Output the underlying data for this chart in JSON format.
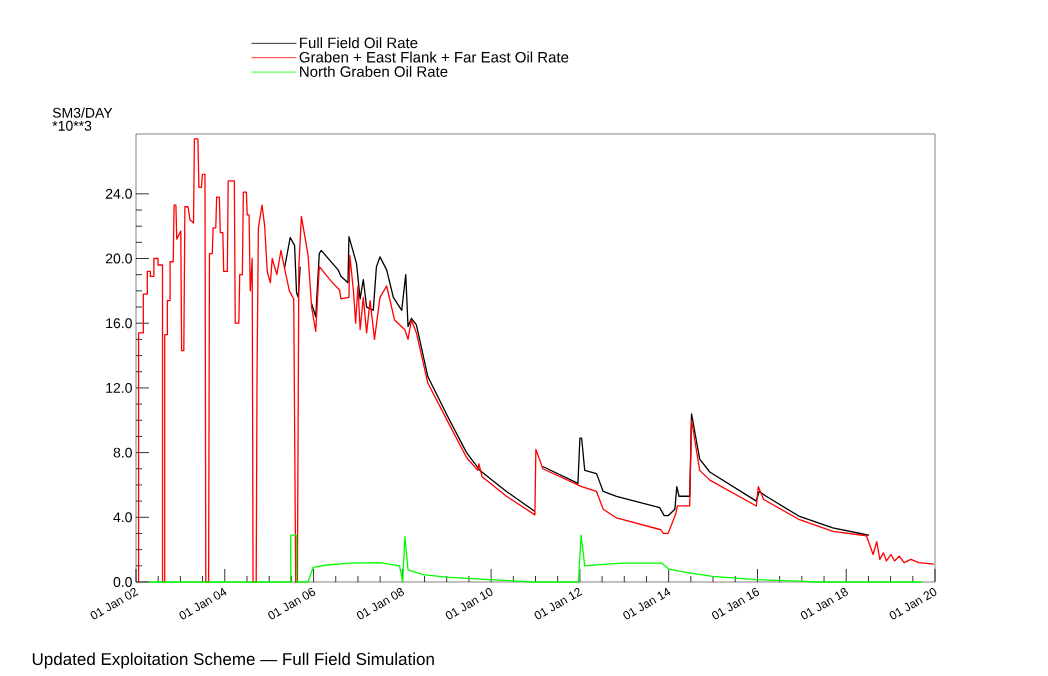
{
  "chart_data": {
    "type": "line",
    "ylabel": "SM3/DAY *10**3",
    "annotations": [
      "Updated Exploitation Scheme — Full Field Simulation"
    ],
    "xlim": [
      "2002-01-01",
      "2020-01-01"
    ],
    "xticks": [
      {
        "value": "2002-01-01",
        "label": "01 Jan 02"
      },
      {
        "value": "2004-01-01",
        "label": "01 Jan 04"
      },
      {
        "value": "2006-01-01",
        "label": "01 Jan 06"
      },
      {
        "value": "2008-01-01",
        "label": "01 Jan 08"
      },
      {
        "value": "2010-01-01",
        "label": "01 Jan 10"
      },
      {
        "value": "2012-01-01",
        "label": "01 Jan 12"
      },
      {
        "value": "2014-01-01",
        "label": "01 Jan 14"
      },
      {
        "value": "2016-01-01",
        "label": "01 Jan 16"
      },
      {
        "value": "2018-01-01",
        "label": "01 Jan 18"
      },
      {
        "value": "2020-01-01",
        "label": "01 Jan 20"
      }
    ],
    "ylim": [
      0,
      27.7
    ],
    "yticks": [
      {
        "value": 0,
        "label": "0.0"
      },
      {
        "value": 4,
        "label": "4.0"
      },
      {
        "value": 8,
        "label": "8.0"
      },
      {
        "value": 12,
        "label": "12.0"
      },
      {
        "value": 16,
        "label": "16.0"
      },
      {
        "value": 20,
        "label": "20.0"
      },
      {
        "value": 24,
        "label": "24.0"
      }
    ],
    "grid": false,
    "legend": "top",
    "marker": "none",
    "line_style": "solid",
    "series": [
      {
        "name": "Full Field Oil Rate",
        "color": "#000000",
        "x": [
          "2005-05-07",
          "2005-06-23",
          "2005-07-29",
          "2005-08-14",
          "2005-08-28",
          "2005-09-13",
          "2005-09-23",
          "2005-11-17",
          "2005-12-16",
          "2006-01-19",
          "2006-02-17",
          "2006-03-05",
          "2006-07-22",
          "2006-08-14",
          "2006-10-11",
          "2006-10-19",
          "2006-12-20",
          "2007-01-19",
          "2007-02-14",
          "2007-03-13",
          "2007-05-07",
          "2007-06-02",
          "2007-07-01",
          "2007-08-25",
          "2007-10-19",
          "2007-12-27",
          "2008-01-29",
          "2008-02-17",
          "2008-03-16",
          "2008-04-26",
          "2008-07-29",
          "2009-01-11",
          "2009-06-13",
          "2009-10-01",
          "2010-05-07",
          "2010-12-27",
          "2011-01-04",
          "2011-03-02",
          "2011-12-16",
          "2012-01-01",
          "2012-01-15",
          "2012-02-10",
          "2012-05-17",
          "2012-07-11",
          "2012-10-29",
          "2013-10-19",
          "2013-11-25",
          "2013-12-27",
          "2014-02-21",
          "2014-03-09",
          "2014-03-27",
          "2014-06-23",
          "2014-07-08",
          "2014-09-13",
          "2014-12-05",
          "2015-12-23",
          "2016-01-15",
          "2016-03-13",
          "2016-12-13",
          "2017-09-13",
          "2018-06-16",
          "2018-07-08"
        ],
        "values": [
          19.4,
          21.3,
          20.8,
          17.9,
          17.6,
          19.5,
          null,
          null,
          17.2,
          16.4,
          20.3,
          20.5,
          19.3,
          18.9,
          18.5,
          21.35,
          19.7,
          17.5,
          18.7,
          17.0,
          16.8,
          19.5,
          20.1,
          19.3,
          17.6,
          16.8,
          19.0,
          15.8,
          16.3,
          15.9,
          12.7,
          10.2,
          8.0,
          6.9,
          5.6,
          4.36,
          null,
          7.14,
          6.1,
          8.9,
          8.9,
          6.9,
          6.7,
          5.6,
          5.3,
          4.6,
          4.1,
          4.1,
          4.5,
          5.9,
          5.3,
          5.3,
          10.4,
          7.6,
          6.8,
          5.0,
          5.6,
          5.3,
          4.05,
          3.34,
          2.92,
          2.9
        ]
      },
      {
        "name": "Graben + East Flank + Far East Oil Rate",
        "color": "#ff0000",
        "x": [
          "2002-01-22",
          "2002-01-22",
          "2002-03-02",
          "2002-03-02",
          "2002-04-04",
          "2002-04-04",
          "2002-04-29",
          "2002-04-29",
          "2002-05-28",
          "2002-05-28",
          "2002-07-01",
          "2002-07-01",
          "2002-08-07",
          "2002-08-07",
          "2002-08-25",
          "2002-08-25",
          "2002-09-16",
          "2002-09-16",
          "2002-10-08",
          "2002-10-08",
          "2002-11-03",
          "2002-11-10",
          "2002-11-25",
          "2002-12-02",
          "2003-01-04",
          "2003-01-11",
          "2003-01-29",
          "2003-02-07",
          "2003-03-05",
          "2003-03-20",
          "2003-04-19",
          "2003-04-26",
          "2003-05-25",
          "2003-06-02",
          "2003-06-23",
          "2003-07-01",
          "2003-07-22",
          "2003-07-29",
          "2003-08-21",
          "2003-08-28",
          "2003-09-20",
          "2003-09-27",
          "2003-10-19",
          "2003-10-26",
          "2003-11-17",
          "2003-11-25",
          "2003-12-16",
          "2003-12-23",
          "2004-01-22",
          "2004-01-29",
          "2004-03-20",
          "2004-03-27",
          "2004-04-26",
          "2004-05-03",
          "2004-05-25",
          "2004-06-02",
          "2004-06-27",
          "2004-07-04",
          "2004-07-19",
          "2004-07-29",
          "2004-08-14",
          "2004-08-21",
          "2004-09-16",
          "2004-09-23",
          "2004-10-04",
          "2004-11-03",
          "2004-11-25",
          "2004-12-16",
          "2005-01-11",
          "2005-01-26",
          "2005-03-05",
          "2005-04-08",
          "2005-05-10",
          "2005-06-16",
          "2005-07-22",
          "2005-08-07",
          "2005-08-21",
          "2005-09-02",
          "2005-09-23",
          "2005-11-17",
          "2005-12-16",
          "2006-01-19",
          "2006-02-17",
          "2006-05-25",
          "2006-08-03",
          "2006-08-14",
          "2006-10-19",
          "2006-10-26",
          "2006-11-25",
          "2006-12-13",
          "2007-01-01",
          "2007-01-19",
          "2007-02-14",
          "2007-03-13",
          "2007-04-11",
          "2007-05-17",
          "2007-07-01",
          "2007-08-25",
          "2007-10-29",
          "2008-01-22",
          "2008-02-17",
          "2008-03-16",
          "2008-04-26",
          "2008-07-29",
          "2009-01-11",
          "2009-06-13",
          "2009-09-13",
          "2009-09-23",
          "2009-10-19",
          "2010-05-07",
          "2010-12-27",
          "2011-01-04",
          "2011-03-02",
          "2011-12-16",
          "2012-01-15",
          "2012-05-17",
          "2012-07-11",
          "2012-10-29",
          "2013-10-29",
          "2013-11-17",
          "2013-12-27",
          "2014-03-02",
          "2014-03-13",
          "2014-06-23",
          "2014-07-08",
          "2014-09-13",
          "2014-12-05",
          "2015-12-23",
          "2016-01-08",
          "2016-02-21",
          "2016-12-13",
          "2017-09-13",
          "2018-06-16",
          "2018-08-10",
          "2018-09-09",
          "2018-10-04",
          "2018-11-03",
          "2018-11-28",
          "2019-01-04",
          "2019-02-03",
          "2019-03-13",
          "2019-04-22",
          "2019-06-16",
          "2019-08-21",
          "2019-12-23"
        ],
        "values": [
          0,
          15.4,
          15.4,
          17.8,
          17.8,
          19.2,
          19.2,
          18.9,
          18.9,
          20.0,
          20.0,
          19.6,
          19.6,
          0,
          0,
          15.3,
          15.3,
          17.4,
          17.4,
          19.8,
          19.8,
          23.3,
          23.3,
          21.2,
          21.7,
          14.3,
          14.3,
          23.2,
          23.2,
          22.4,
          22.2,
          27.4,
          27.4,
          24.4,
          24.4,
          25.2,
          25.2,
          0,
          0,
          20.3,
          20.3,
          21.9,
          21.9,
          23.8,
          23.8,
          21.6,
          21.6,
          19.2,
          19.2,
          24.8,
          24.8,
          16.0,
          16.0,
          19.0,
          19.0,
          24.1,
          24.1,
          22.7,
          22.7,
          18.0,
          20.0,
          0,
          0,
          13.0,
          21.9,
          23.3,
          22.0,
          19.2,
          18.5,
          20.0,
          19.0,
          20.5,
          19.3,
          18.0,
          17.5,
          0,
          0,
          19.5,
          22.6,
          20.2,
          17.0,
          15.5,
          19.5,
          18.6,
          18.05,
          17.5,
          17.6,
          20.2,
          18.0,
          16.0,
          18.3,
          15.6,
          17.6,
          15.4,
          17.4,
          15.0,
          17.6,
          18.3,
          16.2,
          15.6,
          15.0,
          16.2,
          15.4,
          12.3,
          9.9,
          7.7,
          6.9,
          7.3,
          6.5,
          5.3,
          4.15,
          8.2,
          7.0,
          6.0,
          5.9,
          5.6,
          4.5,
          3.96,
          3.23,
          3.0,
          3.0,
          4.25,
          4.7,
          4.7,
          10.0,
          6.9,
          6.3,
          4.7,
          5.9,
          5.1,
          3.85,
          3.13,
          2.86,
          1.7,
          2.5,
          1.4,
          1.8,
          1.3,
          1.7,
          1.3,
          1.6,
          1.2,
          1.4,
          1.2,
          1.1
        ]
      },
      {
        "name": "North Graben Oil Rate",
        "color": "#00ff00",
        "x": [
          "2002-04-15",
          "2005-06-27",
          "2005-06-27",
          "2005-08-14",
          "2005-08-14",
          "2005-11-17",
          "2005-12-27",
          "2006-04-19",
          "2006-10-26",
          "2007-07-01",
          "2007-12-09",
          "2008-01-04",
          "2008-01-22",
          "2008-02-17",
          "2008-06-20",
          "2008-12-27",
          "2009-12-16",
          "2010-12-09",
          "2011-12-20",
          "2012-01-11",
          "2012-02-10",
          "2012-06-13",
          "2012-12-20",
          "2013-11-03",
          "2014-01-01",
          "2014-05-25",
          "2014-12-27",
          "2015-12-23",
          "2017-02-07",
          "2017-04-01",
          "2019-09-15"
        ],
        "values": [
          0,
          0,
          2.9,
          2.9,
          0,
          0,
          0.9,
          1.05,
          1.17,
          1.2,
          1.0,
          0,
          2.8,
          0.75,
          0.45,
          0.3,
          0.15,
          0,
          0,
          2.9,
          1.0,
          1.07,
          1.17,
          1.17,
          0.8,
          0.6,
          0.35,
          0.14,
          0.04,
          0,
          0
        ]
      }
    ]
  }
}
